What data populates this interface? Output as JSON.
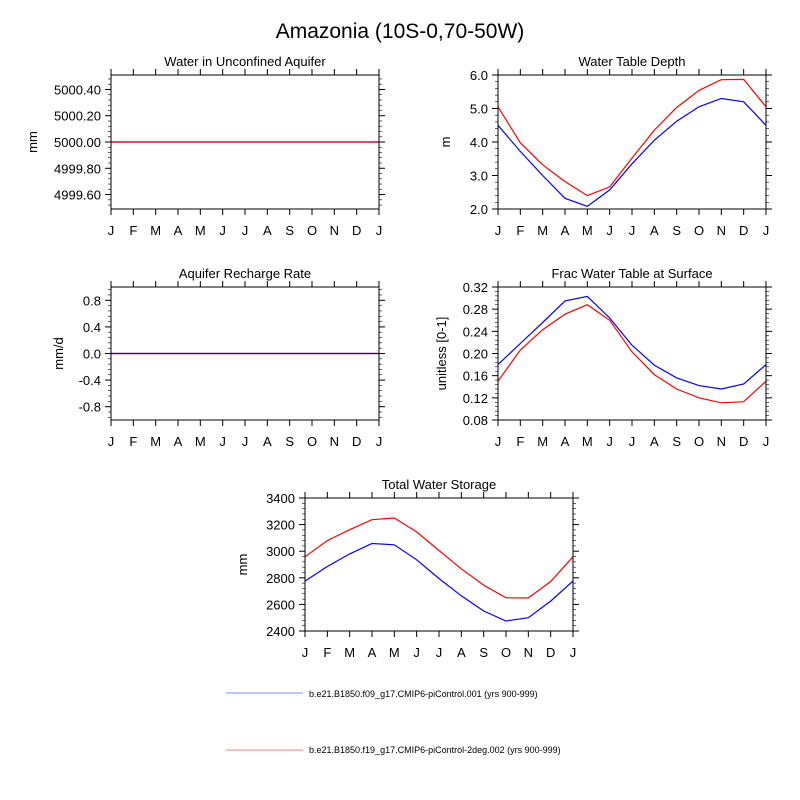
{
  "title": "Amazonia (10S-0,70-50W)",
  "months": [
    "J",
    "F",
    "M",
    "A",
    "M",
    "J",
    "J",
    "A",
    "S",
    "O",
    "N",
    "D",
    "J"
  ],
  "colors": {
    "blue": "#0000ff",
    "red": "#ff0000"
  },
  "legend": [
    {
      "label": "b.e21.B1850.f09_g17.CMIP6-piControl.001 (yrs 900-999)",
      "color": "#0000ff"
    },
    {
      "label": "b.e21.B1850.f19_g17.CMIP6-piControl-2deg.002 (yrs 900-999)",
      "color": "#ff0000"
    }
  ],
  "chart_data": [
    {
      "type": "line",
      "title": "Water in Unconfined Aquifer",
      "ylabel": "mm",
      "ylim": [
        4999.49,
        5000.51
      ],
      "yticks": [
        4999.6,
        4999.8,
        5000.0,
        5000.2,
        5000.4
      ],
      "ytick_labels": [
        "4999.60",
        "4999.80",
        "5000.00",
        "5000.20",
        "5000.40"
      ],
      "series": [
        {
          "name": "b.e21.B1850.f09_g17.CMIP6-piControl.001",
          "color": "#0000ff",
          "values": [
            5000,
            5000,
            5000,
            5000,
            5000,
            5000,
            5000,
            5000,
            5000,
            5000,
            5000,
            5000,
            5000
          ]
        },
        {
          "name": "b.e21.B1850.f19_g17.CMIP6-piControl-2deg.002",
          "color": "#ff0000",
          "values": [
            5000,
            5000,
            5000,
            5000,
            5000,
            5000,
            5000,
            5000,
            5000,
            5000,
            5000,
            5000,
            5000
          ]
        }
      ]
    },
    {
      "type": "line",
      "title": "Water Table Depth",
      "ylabel": "m",
      "ylim": [
        2.0,
        6.0
      ],
      "yticks": [
        2,
        3,
        4,
        5,
        6
      ],
      "ytick_labels": [
        "2.0",
        "3.0",
        "4.0",
        "5.0",
        "6.0"
      ],
      "series": [
        {
          "name": "b.e21.B1850.f09_g17.CMIP6-piControl.001",
          "color": "#0000ff",
          "values": [
            4.5,
            3.72,
            3.0,
            2.32,
            2.08,
            2.57,
            3.35,
            4.05,
            4.62,
            5.05,
            5.3,
            5.2,
            4.5
          ]
        },
        {
          "name": "b.e21.B1850.f19_g17.CMIP6-piControl-2deg.002",
          "color": "#ff0000",
          "values": [
            5.05,
            3.98,
            3.32,
            2.82,
            2.4,
            2.66,
            3.52,
            4.35,
            5.03,
            5.54,
            5.86,
            5.87,
            5.05
          ]
        }
      ]
    },
    {
      "type": "line",
      "title": "Aquifer Recharge Rate",
      "ylabel": "mm/d",
      "ylim": [
        -1.0,
        1.0
      ],
      "yticks": [
        -0.8,
        -0.4,
        0,
        0.4,
        0.8
      ],
      "ytick_labels": [
        "-0.8",
        "-0.4",
        "0.0",
        "0.4",
        "0.8"
      ],
      "series": [
        {
          "name": "b.e21.B1850.f19_g17.CMIP6-piControl-2deg.002",
          "color": "#ff0000",
          "values": [
            0,
            0,
            0,
            0,
            0,
            0,
            0,
            0,
            0,
            0,
            0,
            0,
            0
          ]
        },
        {
          "name": "b.e21.B1850.f09_g17.CMIP6-piControl.001",
          "color": "#0000ff",
          "values": [
            0,
            0,
            0,
            0,
            0,
            0,
            0,
            0,
            0,
            0,
            0,
            0,
            0
          ]
        }
      ]
    },
    {
      "type": "line",
      "title": "Frac Water Table at Surface",
      "ylabel": "unitless [0-1]",
      "ylim": [
        0.08,
        0.32
      ],
      "yticks": [
        0.08,
        0.12,
        0.16,
        0.2,
        0.24,
        0.28,
        0.32
      ],
      "ytick_labels": [
        "0.08",
        "0.12",
        "0.16",
        "0.20",
        "0.24",
        "0.28",
        "0.32"
      ],
      "series": [
        {
          "name": "b.e21.B1850.f09_g17.CMIP6-piControl.001",
          "color": "#0000ff",
          "values": [
            0.18,
            0.218,
            0.256,
            0.295,
            0.303,
            0.264,
            0.215,
            0.179,
            0.156,
            0.142,
            0.136,
            0.145,
            0.18
          ]
        },
        {
          "name": "b.e21.B1850.f19_g17.CMIP6-piControl-2deg.002",
          "color": "#ff0000",
          "values": [
            0.15,
            0.206,
            0.243,
            0.271,
            0.288,
            0.26,
            0.203,
            0.162,
            0.136,
            0.12,
            0.111,
            0.113,
            0.15
          ]
        }
      ]
    },
    {
      "type": "line",
      "title": "Total Water Storage",
      "ylabel": "mm",
      "ylim": [
        2400,
        3400
      ],
      "yticks": [
        2400,
        2600,
        2800,
        3000,
        3200,
        3400
      ],
      "ytick_labels": [
        "2400",
        "2600",
        "2800",
        "3000",
        "3200",
        "3400"
      ],
      "series": [
        {
          "name": "b.e21.B1850.f09_g17.CMIP6-piControl.001",
          "color": "#0000ff",
          "values": [
            2775,
            2885,
            2980,
            3058,
            3048,
            2935,
            2795,
            2665,
            2550,
            2475,
            2500,
            2625,
            2775
          ]
        },
        {
          "name": "b.e21.B1850.f19_g17.CMIP6-piControl-2deg.002",
          "color": "#ff0000",
          "values": [
            2958,
            3080,
            3162,
            3237,
            3250,
            3145,
            3005,
            2868,
            2745,
            2650,
            2648,
            2772,
            2958
          ]
        }
      ]
    }
  ]
}
